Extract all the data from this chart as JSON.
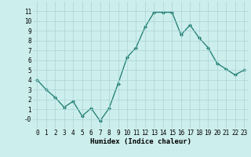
{
  "x": [
    0,
    1,
    2,
    3,
    4,
    5,
    6,
    7,
    8,
    9,
    10,
    11,
    12,
    13,
    14,
    15,
    16,
    17,
    18,
    19,
    20,
    21,
    22,
    23
  ],
  "y": [
    4.0,
    3.0,
    2.2,
    1.2,
    1.8,
    0.3,
    1.1,
    -0.2,
    1.1,
    3.6,
    6.3,
    7.3,
    9.4,
    10.9,
    10.9,
    10.9,
    8.6,
    9.6,
    8.3,
    7.3,
    5.7,
    5.1,
    4.5,
    5.0
  ],
  "line_color": "#1a7a6e",
  "marker": "D",
  "marker_size": 2.0,
  "bg_color": "#cceeed",
  "grid_color": "#aad4d4",
  "xlabel": "Humidex (Indice chaleur)",
  "ylim": [
    -1.0,
    12.0
  ],
  "xlim": [
    -0.5,
    23.5
  ],
  "ytick_labels": [
    "",
    "-0",
    "1",
    "2",
    "3",
    "4",
    "5",
    "6",
    "7",
    "8",
    "9",
    "10",
    "11"
  ],
  "ytick_vals": [
    -1,
    0,
    1,
    2,
    3,
    4,
    5,
    6,
    7,
    8,
    9,
    10,
    11
  ],
  "xticks": [
    0,
    1,
    2,
    3,
    4,
    5,
    6,
    7,
    8,
    9,
    10,
    11,
    12,
    13,
    14,
    15,
    16,
    17,
    18,
    19,
    20,
    21,
    22,
    23
  ],
  "xlabel_fontsize": 6.5,
  "tick_fontsize": 5.5
}
